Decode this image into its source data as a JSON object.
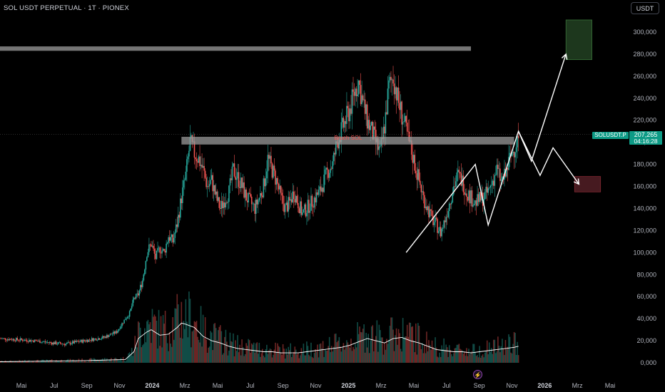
{
  "header": {
    "title": "SOL USDT PERPETUAL · 1T · PIONEX",
    "currency_label": "USDT"
  },
  "price_tag": {
    "symbol": "SOLUSDT.P",
    "price": "207,265",
    "countdown": "04:16:28"
  },
  "annotation": {
    "label": "Bruch SOL"
  },
  "colors": {
    "up": "#26a69a",
    "down": "#ef5350",
    "price_tag": "#0d9b86",
    "resistance_zone": "#808080",
    "target_box": "#1f3a1f",
    "stop_box": "#4a1c22"
  },
  "icons": {
    "flash": "lightning-icon"
  },
  "chart_data": {
    "type": "candlestick",
    "title": "SOL USDT PERPETUAL · 1T · PIONEX",
    "interval": "1D",
    "yaxis": {
      "ticks": [
        "300,000",
        "280,000",
        "260,000",
        "240,000",
        "220,000",
        "200,000",
        "180,000",
        "160,000",
        "140,000",
        "120,000",
        "100,000",
        "80,000",
        "60,000",
        "40,000",
        "20,000",
        "0,000"
      ],
      "range": [
        -8,
        312
      ],
      "position": "right"
    },
    "xaxis": {
      "ticks": [
        {
          "label": "Mai",
          "bold": false
        },
        {
          "label": "Jul",
          "bold": false
        },
        {
          "label": "Sep",
          "bold": false
        },
        {
          "label": "Nov",
          "bold": false
        },
        {
          "label": "2024",
          "bold": true
        },
        {
          "label": "Mrz",
          "bold": false
        },
        {
          "label": "Mai",
          "bold": false
        },
        {
          "label": "Jul",
          "bold": false
        },
        {
          "label": "Sep",
          "bold": false
        },
        {
          "label": "Nov",
          "bold": false
        },
        {
          "label": "2025",
          "bold": true
        },
        {
          "label": "Mrz",
          "bold": false
        },
        {
          "label": "Mai",
          "bold": false
        },
        {
          "label": "Jul",
          "bold": false
        },
        {
          "label": "Sep",
          "bold": false
        },
        {
          "label": "Nov",
          "bold": false
        },
        {
          "label": "2026",
          "bold": true
        },
        {
          "label": "Mrz",
          "bold": false
        },
        {
          "label": "Mai",
          "bold": false
        }
      ]
    },
    "price_path": [
      [
        0,
        22
      ],
      [
        8,
        20
      ],
      [
        12,
        18
      ],
      [
        15,
        17
      ],
      [
        18,
        19
      ],
      [
        21,
        21
      ],
      [
        24,
        23
      ],
      [
        27,
        28
      ],
      [
        29,
        40
      ],
      [
        30,
        45
      ],
      [
        31,
        58
      ],
      [
        32,
        62
      ],
      [
        33,
        75
      ],
      [
        34,
        100
      ],
      [
        35,
        108
      ],
      [
        36,
        95
      ],
      [
        37,
        104
      ],
      [
        38,
        100
      ],
      [
        39,
        115
      ],
      [
        40,
        110
      ],
      [
        41,
        126
      ],
      [
        42,
        150
      ],
      [
        43,
        170
      ],
      [
        44,
        200
      ],
      [
        45,
        190
      ],
      [
        46,
        185
      ],
      [
        47,
        175
      ],
      [
        48,
        160
      ],
      [
        49,
        165
      ],
      [
        50,
        150
      ],
      [
        51,
        140
      ],
      [
        52,
        148
      ],
      [
        53,
        155
      ],
      [
        54,
        175
      ],
      [
        55,
        168
      ],
      [
        56,
        160
      ],
      [
        57,
        150
      ],
      [
        58,
        145
      ],
      [
        59,
        140
      ],
      [
        60,
        150
      ],
      [
        61,
        160
      ],
      [
        62,
        185
      ],
      [
        63,
        175
      ],
      [
        64,
        165
      ],
      [
        65,
        150
      ],
      [
        66,
        140
      ],
      [
        67,
        145
      ],
      [
        68,
        155
      ],
      [
        69,
        145
      ],
      [
        70,
        135
      ],
      [
        71,
        140
      ],
      [
        72,
        145
      ],
      [
        73,
        150
      ],
      [
        74,
        155
      ],
      [
        75,
        165
      ],
      [
        76,
        175
      ],
      [
        77,
        180
      ],
      [
        78,
        200
      ],
      [
        79,
        210
      ],
      [
        80,
        220
      ],
      [
        81,
        230
      ],
      [
        82,
        245
      ],
      [
        83,
        255
      ],
      [
        84,
        235
      ],
      [
        85,
        220
      ],
      [
        86,
        210
      ],
      [
        87,
        200
      ],
      [
        88,
        190
      ],
      [
        89,
        215
      ],
      [
        90,
        250
      ],
      [
        91,
        260
      ],
      [
        92,
        240
      ],
      [
        93,
        225
      ],
      [
        94,
        210
      ],
      [
        95,
        195
      ],
      [
        96,
        180
      ],
      [
        97,
        165
      ],
      [
        98,
        150
      ],
      [
        99,
        140
      ],
      [
        100,
        130
      ],
      [
        101,
        125
      ],
      [
        102,
        118
      ],
      [
        103,
        130
      ],
      [
        104,
        145
      ],
      [
        105,
        160
      ],
      [
        106,
        170
      ],
      [
        107,
        165
      ],
      [
        108,
        155
      ],
      [
        109,
        150
      ],
      [
        110,
        145
      ],
      [
        111,
        148
      ],
      [
        112,
        150
      ],
      [
        113,
        155
      ],
      [
        114,
        165
      ],
      [
        115,
        175
      ],
      [
        116,
        165
      ],
      [
        117,
        170
      ],
      [
        118,
        185
      ],
      [
        119,
        195
      ],
      [
        120,
        205
      ]
    ],
    "volume_ma_path": [
      [
        0,
        1
      ],
      [
        20,
        2
      ],
      [
        29,
        3
      ],
      [
        31,
        10
      ],
      [
        32,
        22
      ],
      [
        34,
        28
      ],
      [
        35,
        30
      ],
      [
        37,
        25
      ],
      [
        39,
        26
      ],
      [
        41,
        32
      ],
      [
        42,
        36
      ],
      [
        43,
        35
      ],
      [
        45,
        32
      ],
      [
        47,
        24
      ],
      [
        49,
        20
      ],
      [
        51,
        18
      ],
      [
        53,
        15
      ],
      [
        55,
        13
      ],
      [
        57,
        12
      ],
      [
        59,
        11
      ],
      [
        61,
        10
      ],
      [
        63,
        10
      ],
      [
        65,
        9
      ],
      [
        67,
        9
      ],
      [
        69,
        9
      ],
      [
        71,
        10
      ],
      [
        73,
        11
      ],
      [
        75,
        12
      ],
      [
        77,
        13
      ],
      [
        79,
        14
      ],
      [
        81,
        16
      ],
      [
        83,
        19
      ],
      [
        85,
        22
      ],
      [
        87,
        20
      ],
      [
        89,
        18
      ],
      [
        91,
        22
      ],
      [
        93,
        23
      ],
      [
        95,
        20
      ],
      [
        97,
        18
      ],
      [
        99,
        15
      ],
      [
        101,
        12
      ],
      [
        103,
        11
      ],
      [
        105,
        10
      ],
      [
        107,
        10
      ],
      [
        109,
        9
      ],
      [
        111,
        10
      ],
      [
        113,
        11
      ],
      [
        115,
        12
      ],
      [
        117,
        13
      ],
      [
        119,
        14
      ],
      [
        120,
        15
      ]
    ],
    "resistance_lines": [
      {
        "label": "",
        "y_from": 283,
        "y_to": 287
      },
      {
        "label": "Bruch SOL",
        "y_from": 198,
        "y_to": 205
      }
    ],
    "projection_paths": [
      {
        "name": "",
        "points": [
          [
            94,
            100
          ],
          [
            110,
            180
          ],
          [
            113,
            125
          ],
          [
            120,
            210
          ],
          [
            123,
            183
          ],
          [
            131,
            280
          ]
        ]
      },
      {
        "name": "",
        "points": [
          [
            120,
            210
          ],
          [
            125,
            170
          ],
          [
            128,
            195
          ],
          [
            134,
            162
          ]
        ]
      }
    ],
    "zones": [
      {
        "label": "",
        "y_from": 275,
        "y_to": 311,
        "x_from": 131,
        "x_to": 137
      },
      {
        "label": "",
        "y_from": 155,
        "y_to": 169,
        "x_from": 133,
        "x_to": 139
      }
    ],
    "last_price": 207.265,
    "grid": false,
    "legend": "none"
  }
}
